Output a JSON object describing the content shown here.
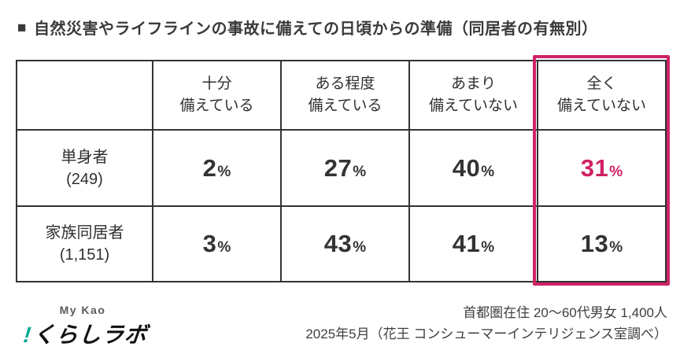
{
  "title": {
    "bullet": "■",
    "text": "自然災害やライフラインの事故に備えての日頃からの準備（同居者の有無別）"
  },
  "table": {
    "unit": "%",
    "columns": [
      {
        "line1": "十分",
        "line2": "備えている"
      },
      {
        "line1": "ある程度",
        "line2": "備えている"
      },
      {
        "line1": "あまり",
        "line2": "備えていない"
      },
      {
        "line1": "全く",
        "line2": "備えていない"
      }
    ],
    "rows": [
      {
        "label": "単身者",
        "count": "(249)",
        "values": [
          "2",
          "27",
          "40",
          "31"
        ]
      },
      {
        "label": "家族同居者",
        "count": "(1,151)",
        "values": [
          "3",
          "43",
          "41",
          "13"
        ]
      }
    ]
  },
  "chart_data": {
    "type": "table",
    "title": "自然災害やライフラインの事故に備えての日頃からの準備（同居者の有無別）",
    "categories": [
      "十分備えている",
      "ある程度備えている",
      "あまり備えていない",
      "全く備えていない"
    ],
    "series": [
      {
        "name": "単身者",
        "n": 249,
        "values": [
          2,
          27,
          40,
          31
        ]
      },
      {
        "name": "家族同居者",
        "n": 1151,
        "values": [
          3,
          43,
          41,
          13
        ]
      }
    ],
    "unit": "%",
    "highlight": {
      "column": "全く備えていない",
      "emphasized_value": {
        "series": "単身者",
        "value": 31
      }
    }
  },
  "footer": {
    "logo": {
      "top": "My Kao",
      "mark": "!",
      "name": "くらしラボ"
    },
    "note_line1": "首都圏在住 20〜60代男女 1,400人",
    "note_line2": "2025年5月（花王 コンシューマーインテリジェンス室調べ）"
  },
  "colors": {
    "accent_pink": "#cf2364",
    "logo_teal": "#00ab97",
    "border_dark": "#333333",
    "text_dark": "#333333"
  }
}
